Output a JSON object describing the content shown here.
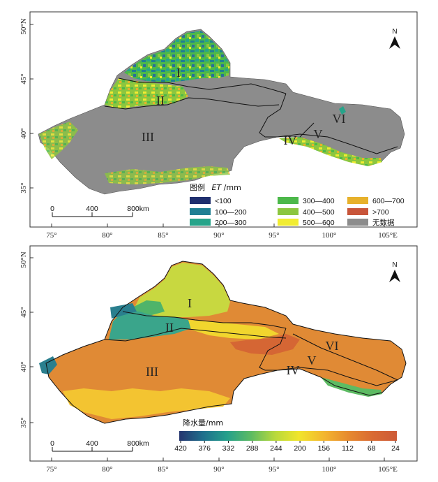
{
  "top_map": {
    "lat_ticks": [
      "50°N",
      "45°",
      "40°",
      "35°"
    ],
    "lon_ticks": [
      "75°",
      "80°",
      "85°",
      "90°",
      "95°",
      "100°",
      "105°E"
    ],
    "regions": [
      "I",
      "II",
      "III",
      "IV",
      "V",
      "VI"
    ],
    "north_label": "N",
    "scale": {
      "ticks": [
        "0",
        "400",
        "800km"
      ]
    },
    "legend": {
      "title_prefix": "图例",
      "title_var": "ET",
      "title_unit": "/mm",
      "items": [
        {
          "label": "<100",
          "color": "#1f2f6e"
        },
        {
          "label": "100—200",
          "color": "#1f7f93"
        },
        {
          "label": "200—300",
          "color": "#27a48a"
        },
        {
          "label": "300—400",
          "color": "#4cb84a"
        },
        {
          "label": "400—500",
          "color": "#8cc63f"
        },
        {
          "label": "500—600",
          "color": "#f1ec32"
        },
        {
          "label": "600—700",
          "color": "#e7b12b"
        },
        {
          "label": ">700",
          "color": "#c8553a"
        },
        {
          "label": "无数据",
          "color": "#8c8c8c"
        }
      ]
    }
  },
  "bottom_map": {
    "lat_ticks": [
      "50°N",
      "45°",
      "40°",
      "35°"
    ],
    "lon_ticks": [
      "75°",
      "80°",
      "85°",
      "90°",
      "95°",
      "100°",
      "105°E"
    ],
    "regions": [
      "I",
      "II",
      "III",
      "IV",
      "V",
      "VI"
    ],
    "north_label": "N",
    "scale": {
      "ticks": [
        "0",
        "400",
        "800km"
      ]
    },
    "colorbar": {
      "title": "降水量/mm",
      "ticks": [
        "420",
        "376",
        "332",
        "288",
        "244",
        "200",
        "156",
        "112",
        "68",
        "24"
      ],
      "colors": [
        "#25356f",
        "#1f6f8c",
        "#25a08b",
        "#5dbb63",
        "#b8d93c",
        "#f1e52b",
        "#f3b42f",
        "#e6892f",
        "#d96a33",
        "#cd5a37"
      ]
    }
  }
}
